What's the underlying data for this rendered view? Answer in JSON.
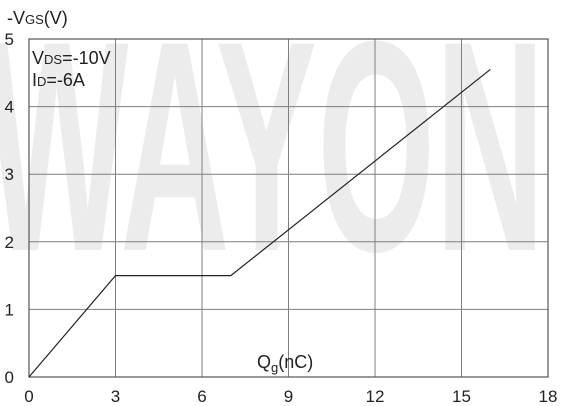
{
  "chart_data": {
    "type": "line",
    "title": "",
    "ylabel": {
      "prefix": "-V",
      "sub": "GS",
      "suffix": "(V)"
    },
    "xlabel": {
      "prefix": "Q",
      "sub": "g",
      "suffix": "(nC)"
    },
    "conditions": [
      {
        "prefix": "V",
        "sub": "DS",
        "suffix": "=-10V"
      },
      {
        "prefix": "I",
        "sub": "D",
        "suffix": "=-6A"
      }
    ],
    "xlim": [
      0,
      18
    ],
    "ylim": [
      0,
      5
    ],
    "xticks": [
      0,
      3,
      6,
      9,
      12,
      15,
      18
    ],
    "yticks": [
      0,
      1,
      2,
      3,
      4,
      5
    ],
    "grid": true,
    "watermark": "WAYON",
    "series": [
      {
        "x": [
          0,
          3.0,
          7.0,
          16.0
        ],
        "y": [
          0,
          1.5,
          1.5,
          4.55
        ]
      }
    ],
    "colors": {
      "line": "#222222",
      "grid": "#7f7f7f",
      "frame": "#555555",
      "watermark": "#d6d6d6"
    }
  }
}
